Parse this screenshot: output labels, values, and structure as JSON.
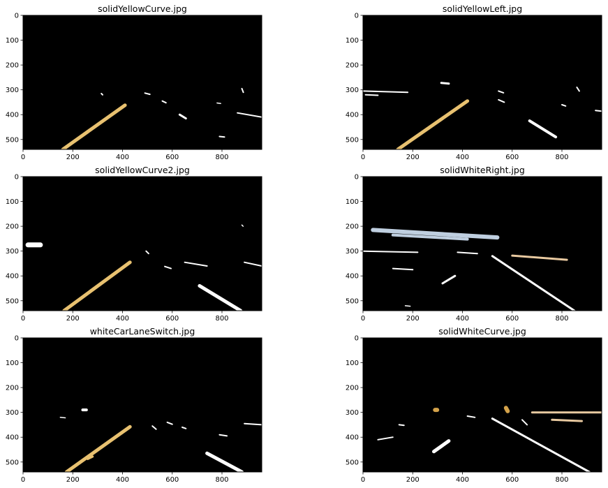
{
  "figure": {
    "background": "#ffffff",
    "image_background": "#000000"
  },
  "chart_data": [
    {
      "type": "image",
      "title": "solidYellowCurve.jpg",
      "xlim": [
        0,
        960
      ],
      "ylim": [
        540,
        0
      ],
      "xticks": [
        0,
        200,
        400,
        600,
        800
      ],
      "yticks": [
        0,
        100,
        200,
        300,
        400,
        500
      ],
      "strokes": [
        {
          "color": "#e8c170",
          "width": 5,
          "points": [
            [
              160,
              540
            ],
            [
              410,
              362
            ]
          ]
        },
        {
          "color": "#ffffff",
          "width": 3,
          "points": [
            [
              630,
              400
            ],
            [
              655,
              415
            ]
          ]
        },
        {
          "color": "#ffffff",
          "width": 2,
          "points": [
            [
              862,
              393
            ],
            [
              960,
              410
            ]
          ]
        },
        {
          "color": "#ffffff",
          "width": 2,
          "points": [
            [
              560,
              345
            ],
            [
              575,
              352
            ]
          ]
        },
        {
          "color": "#ffffff",
          "width": 2,
          "points": [
            [
              490,
              313
            ],
            [
              510,
              318
            ]
          ]
        },
        {
          "color": "#ffffff",
          "width": 2,
          "points": [
            [
              315,
              315
            ],
            [
              320,
              320
            ]
          ]
        },
        {
          "color": "#ffffff",
          "width": 2,
          "points": [
            [
              880,
              295
            ],
            [
              886,
              310
            ]
          ]
        },
        {
          "color": "#ffffff",
          "width": 2,
          "points": [
            [
              790,
              488
            ],
            [
              810,
              490
            ]
          ]
        },
        {
          "color": "#ffffff",
          "width": 1.5,
          "points": [
            [
              780,
              353
            ],
            [
              795,
              355
            ]
          ]
        }
      ]
    },
    {
      "type": "image",
      "title": "solidYellowLeft.jpg",
      "xlim": [
        0,
        960
      ],
      "ylim": [
        540,
        0
      ],
      "xticks": [
        0,
        200,
        400,
        600,
        800
      ],
      "yticks": [
        0,
        100,
        200,
        300,
        400,
        500
      ],
      "strokes": [
        {
          "color": "#e8c170",
          "width": 5,
          "points": [
            [
              140,
              540
            ],
            [
              420,
              345
            ]
          ]
        },
        {
          "color": "#ffffff",
          "width": 4,
          "points": [
            [
              670,
              425
            ],
            [
              775,
              490
            ]
          ]
        },
        {
          "color": "#ffffff",
          "width": 2,
          "points": [
            [
              545,
              340
            ],
            [
              568,
              350
            ]
          ]
        },
        {
          "color": "#ffffff",
          "width": 2,
          "points": [
            [
              0,
              305
            ],
            [
              180,
              310
            ]
          ]
        },
        {
          "color": "#ffffff",
          "width": 2,
          "points": [
            [
              10,
              320
            ],
            [
              60,
              322
            ]
          ]
        },
        {
          "color": "#ffffff",
          "width": 3,
          "points": [
            [
              315,
              272
            ],
            [
              345,
              275
            ]
          ]
        },
        {
          "color": "#ffffff",
          "width": 2,
          "points": [
            [
              545,
              305
            ],
            [
              565,
              312
            ]
          ]
        },
        {
          "color": "#ffffff",
          "width": 2,
          "points": [
            [
              860,
              290
            ],
            [
              870,
              305
            ]
          ]
        },
        {
          "color": "#ffffff",
          "width": 2,
          "points": [
            [
              935,
              383
            ],
            [
              960,
              386
            ]
          ]
        },
        {
          "color": "#ffffff",
          "width": 2,
          "points": [
            [
              800,
              360
            ],
            [
              815,
              365
            ]
          ]
        }
      ]
    },
    {
      "type": "image",
      "title": "solidYellowCurve2.jpg",
      "xlim": [
        0,
        960
      ],
      "ylim": [
        540,
        0
      ],
      "xticks": [
        0,
        200,
        400,
        600,
        800
      ],
      "yticks": [
        0,
        100,
        200,
        300,
        400,
        500
      ],
      "strokes": [
        {
          "color": "#e8c170",
          "width": 5,
          "points": [
            [
              165,
              540
            ],
            [
              430,
              345
            ]
          ]
        },
        {
          "color": "#ffffff",
          "width": 5,
          "points": [
            [
              710,
              440
            ],
            [
              875,
              540
            ]
          ]
        },
        {
          "color": "#ffffff",
          "width": 7,
          "points": [
            [
              20,
              275
            ],
            [
              70,
              275
            ]
          ]
        },
        {
          "color": "#ffffff",
          "width": 2,
          "points": [
            [
              570,
              362
            ],
            [
              595,
              370
            ]
          ]
        },
        {
          "color": "#ffffff",
          "width": 2,
          "points": [
            [
              650,
              345
            ],
            [
              740,
              360
            ]
          ]
        },
        {
          "color": "#ffffff",
          "width": 2,
          "points": [
            [
              890,
              345
            ],
            [
              960,
              360
            ]
          ]
        },
        {
          "color": "#ffffff",
          "width": 2,
          "points": [
            [
              495,
              300
            ],
            [
              505,
              310
            ]
          ]
        },
        {
          "color": "#ffffff",
          "width": 1.5,
          "points": [
            [
              880,
              195
            ],
            [
              885,
              200
            ]
          ]
        }
      ]
    },
    {
      "type": "image",
      "title": "solidWhiteRight.jpg",
      "xlim": [
        0,
        960
      ],
      "ylim": [
        540,
        0
      ],
      "xticks": [
        0,
        200,
        400,
        600,
        800
      ],
      "yticks": [
        0,
        100,
        200,
        300,
        400,
        500
      ],
      "strokes": [
        {
          "color": "#ffffff",
          "width": 3,
          "points": [
            [
              520,
              320
            ],
            [
              850,
              540
            ]
          ]
        },
        {
          "color": "#ffffff",
          "width": 3,
          "points": [
            [
              320,
              430
            ],
            [
              370,
              400
            ]
          ]
        },
        {
          "color": "#bfcfe0",
          "width": 6,
          "points": [
            [
              40,
              215
            ],
            [
              540,
              245
            ]
          ]
        },
        {
          "color": "#bfcfe0",
          "width": 4,
          "points": [
            [
              120,
              235
            ],
            [
              420,
              252
            ]
          ]
        },
        {
          "color": "#e8c9a0",
          "width": 3,
          "points": [
            [
              600,
              318
            ],
            [
              820,
              335
            ]
          ]
        },
        {
          "color": "#ffffff",
          "width": 2,
          "points": [
            [
              0,
              300
            ],
            [
              220,
              305
            ]
          ]
        },
        {
          "color": "#ffffff",
          "width": 2,
          "points": [
            [
              120,
              370
            ],
            [
              200,
              375
            ]
          ]
        },
        {
          "color": "#ffffff",
          "width": 2,
          "points": [
            [
              380,
              305
            ],
            [
              460,
              310
            ]
          ]
        },
        {
          "color": "#ffffff",
          "width": 1.5,
          "points": [
            [
              170,
              520
            ],
            [
              190,
              522
            ]
          ]
        }
      ]
    },
    {
      "type": "image",
      "title": "whiteCarLaneSwitch.jpg",
      "xlim": [
        0,
        960
      ],
      "ylim": [
        540,
        0
      ],
      "xticks": [
        0,
        200,
        400,
        600,
        800
      ],
      "yticks": [
        0,
        100,
        200,
        300,
        400,
        500
      ],
      "strokes": [
        {
          "color": "#e8c170",
          "width": 5,
          "points": [
            [
              175,
              540
            ],
            [
              430,
              358
            ]
          ]
        },
        {
          "color": "#e8c170",
          "width": 3,
          "points": [
            [
              260,
              488
            ],
            [
              280,
              478
            ]
          ]
        },
        {
          "color": "#ffffff",
          "width": 5,
          "points": [
            [
              740,
              465
            ],
            [
              880,
              540
            ]
          ]
        },
        {
          "color": "#ffffff",
          "width": 4,
          "points": [
            [
              240,
              290
            ],
            [
              255,
              290
            ]
          ]
        },
        {
          "color": "#ffffff",
          "width": 2,
          "points": [
            [
              580,
              340
            ],
            [
              600,
              348
            ]
          ]
        },
        {
          "color": "#ffffff",
          "width": 2,
          "points": [
            [
              640,
              360
            ],
            [
              655,
              365
            ]
          ]
        },
        {
          "color": "#ffffff",
          "width": 2,
          "points": [
            [
              790,
              390
            ],
            [
              820,
              395
            ]
          ]
        },
        {
          "color": "#ffffff",
          "width": 2,
          "points": [
            [
              890,
              345
            ],
            [
              960,
              350
            ]
          ]
        },
        {
          "color": "#ffffff",
          "width": 2,
          "points": [
            [
              520,
              355
            ],
            [
              535,
              368
            ]
          ]
        },
        {
          "color": "#ffffff",
          "width": 1.5,
          "points": [
            [
              150,
              320
            ],
            [
              170,
              322
            ]
          ]
        }
      ]
    },
    {
      "type": "image",
      "title": "solidWhiteCurve.jpg",
      "xlim": [
        0,
        960
      ],
      "ylim": [
        540,
        0
      ],
      "xticks": [
        0,
        200,
        400,
        600,
        800
      ],
      "yticks": [
        0,
        100,
        200,
        300,
        400,
        500
      ],
      "strokes": [
        {
          "color": "#ffffff",
          "width": 3,
          "points": [
            [
              520,
              325
            ],
            [
              910,
              540
            ]
          ]
        },
        {
          "color": "#ffffff",
          "width": 5,
          "points": [
            [
              285,
              458
            ],
            [
              345,
              415
            ]
          ]
        },
        {
          "color": "#ffffff",
          "width": 2,
          "points": [
            [
              60,
              410
            ],
            [
              120,
              400
            ]
          ]
        },
        {
          "color": "#ffffff",
          "width": 2,
          "points": [
            [
              420,
              315
            ],
            [
              450,
              320
            ]
          ]
        },
        {
          "color": "#ffffff",
          "width": 2,
          "points": [
            [
              145,
              350
            ],
            [
              165,
              352
            ]
          ]
        },
        {
          "color": "#ffffff",
          "width": 2,
          "points": [
            [
              640,
              330
            ],
            [
              660,
              350
            ]
          ]
        },
        {
          "color": "#d4a24a",
          "width": 6,
          "points": [
            [
              290,
              290
            ],
            [
              298,
              290
            ]
          ]
        },
        {
          "color": "#d4a24a",
          "width": 6,
          "points": [
            [
              575,
              282
            ],
            [
              582,
              295
            ]
          ]
        },
        {
          "color": "#e8c9a0",
          "width": 3,
          "points": [
            [
              680,
              300
            ],
            [
              960,
              300
            ]
          ]
        },
        {
          "color": "#e8c9a0",
          "width": 3,
          "points": [
            [
              760,
              330
            ],
            [
              880,
              335
            ]
          ]
        }
      ]
    }
  ]
}
